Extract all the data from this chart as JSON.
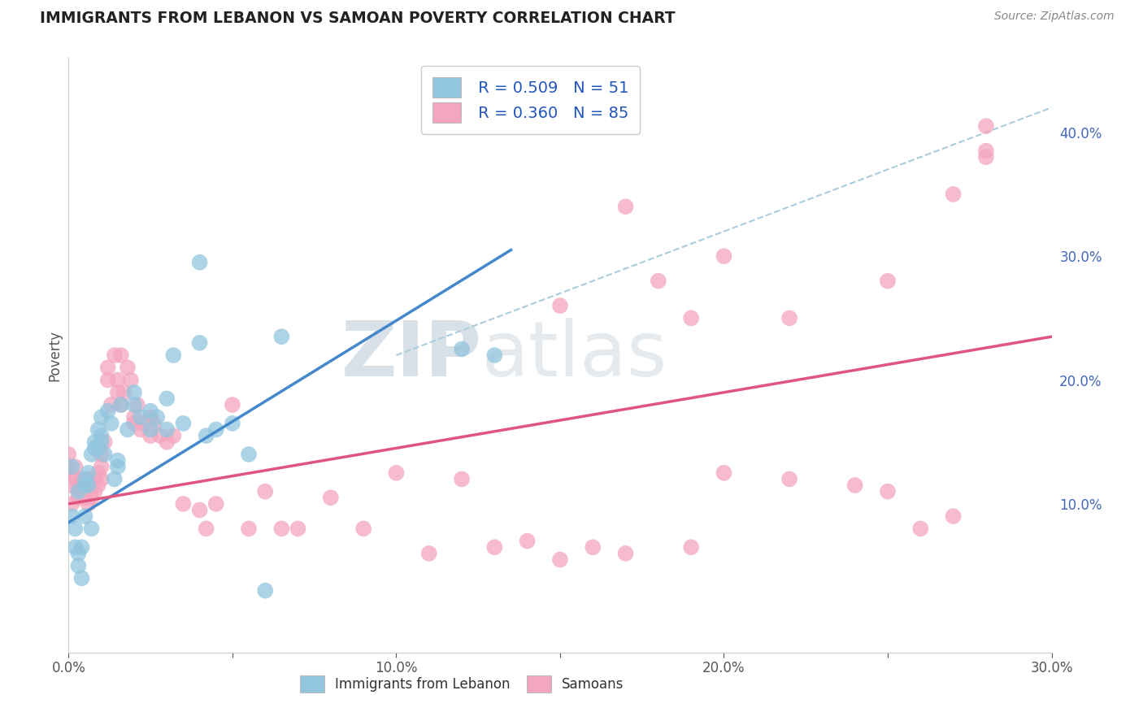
{
  "title": "IMMIGRANTS FROM LEBANON VS SAMOAN POVERTY CORRELATION CHART",
  "source": "Source: ZipAtlas.com",
  "ylabel": "Poverty",
  "x_min": 0.0,
  "x_max": 0.3,
  "y_min": -0.02,
  "y_max": 0.46,
  "x_ticks": [
    0.0,
    0.05,
    0.1,
    0.15,
    0.2,
    0.25,
    0.3
  ],
  "x_tick_labels": [
    "0.0%",
    "",
    "10.0%",
    "",
    "20.0%",
    "",
    "30.0%"
  ],
  "y_ticks_right": [
    0.1,
    0.2,
    0.3,
    0.4
  ],
  "y_tick_labels_right": [
    "10.0%",
    "20.0%",
    "30.0%",
    "40.0%"
  ],
  "legend_blue_r": "R = 0.509",
  "legend_blue_n": "N = 51",
  "legend_pink_r": "R = 0.360",
  "legend_pink_n": "N = 85",
  "legend_label_blue": "Immigrants from Lebanon",
  "legend_label_pink": "Samoans",
  "blue_color": "#92c5de",
  "pink_color": "#f4a6be",
  "blue_line_color": "#4488cc",
  "pink_line_color": "#e05580",
  "dashed_line_color": "#aaccdd",
  "watermark_zip": "ZIP",
  "watermark_atlas": "atlas",
  "blue_scatter_x": [
    0.001,
    0.001,
    0.002,
    0.002,
    0.003,
    0.003,
    0.003,
    0.004,
    0.004,
    0.005,
    0.005,
    0.005,
    0.006,
    0.006,
    0.007,
    0.007,
    0.008,
    0.008,
    0.009,
    0.009,
    0.01,
    0.01,
    0.01,
    0.011,
    0.012,
    0.013,
    0.014,
    0.015,
    0.015,
    0.016,
    0.018,
    0.02,
    0.02,
    0.022,
    0.025,
    0.025,
    0.027,
    0.03,
    0.03,
    0.032,
    0.035,
    0.04,
    0.04,
    0.042,
    0.045,
    0.05,
    0.055,
    0.06,
    0.065,
    0.12,
    0.13
  ],
  "blue_scatter_y": [
    0.13,
    0.09,
    0.08,
    0.065,
    0.05,
    0.06,
    0.11,
    0.065,
    0.04,
    0.12,
    0.09,
    0.115,
    0.115,
    0.125,
    0.08,
    0.14,
    0.145,
    0.15,
    0.16,
    0.145,
    0.17,
    0.15,
    0.155,
    0.14,
    0.175,
    0.165,
    0.12,
    0.13,
    0.135,
    0.18,
    0.16,
    0.18,
    0.19,
    0.17,
    0.16,
    0.175,
    0.17,
    0.185,
    0.16,
    0.22,
    0.165,
    0.23,
    0.295,
    0.155,
    0.16,
    0.165,
    0.14,
    0.03,
    0.235,
    0.225,
    0.22
  ],
  "pink_scatter_x": [
    0.0,
    0.0,
    0.0,
    0.001,
    0.001,
    0.002,
    0.002,
    0.003,
    0.003,
    0.003,
    0.004,
    0.004,
    0.005,
    0.005,
    0.006,
    0.006,
    0.007,
    0.007,
    0.008,
    0.008,
    0.009,
    0.009,
    0.01,
    0.01,
    0.01,
    0.011,
    0.012,
    0.012,
    0.013,
    0.014,
    0.015,
    0.015,
    0.016,
    0.016,
    0.017,
    0.018,
    0.019,
    0.02,
    0.02,
    0.021,
    0.022,
    0.023,
    0.025,
    0.025,
    0.026,
    0.028,
    0.03,
    0.032,
    0.035,
    0.04,
    0.042,
    0.045,
    0.05,
    0.055,
    0.06,
    0.065,
    0.07,
    0.08,
    0.09,
    0.1,
    0.11,
    0.12,
    0.13,
    0.14,
    0.15,
    0.16,
    0.17,
    0.18,
    0.19,
    0.2,
    0.22,
    0.24,
    0.25,
    0.26,
    0.27,
    0.28,
    0.15,
    0.17,
    0.19,
    0.2,
    0.22,
    0.25,
    0.27,
    0.28,
    0.28
  ],
  "pink_scatter_y": [
    0.13,
    0.115,
    0.14,
    0.1,
    0.125,
    0.12,
    0.13,
    0.11,
    0.115,
    0.105,
    0.12,
    0.115,
    0.105,
    0.115,
    0.1,
    0.12,
    0.105,
    0.115,
    0.11,
    0.12,
    0.115,
    0.125,
    0.13,
    0.12,
    0.14,
    0.15,
    0.2,
    0.21,
    0.18,
    0.22,
    0.19,
    0.2,
    0.18,
    0.22,
    0.19,
    0.21,
    0.2,
    0.165,
    0.17,
    0.18,
    0.16,
    0.165,
    0.155,
    0.17,
    0.165,
    0.155,
    0.15,
    0.155,
    0.1,
    0.095,
    0.08,
    0.1,
    0.18,
    0.08,
    0.11,
    0.08,
    0.08,
    0.105,
    0.08,
    0.125,
    0.06,
    0.12,
    0.065,
    0.07,
    0.055,
    0.065,
    0.06,
    0.28,
    0.065,
    0.125,
    0.12,
    0.115,
    0.11,
    0.08,
    0.09,
    0.38,
    0.26,
    0.34,
    0.25,
    0.3,
    0.25,
    0.28,
    0.35,
    0.385,
    0.405
  ],
  "blue_line_x": [
    0.0,
    0.135
  ],
  "blue_line_y": [
    0.085,
    0.305
  ],
  "pink_line_x": [
    0.0,
    0.3
  ],
  "pink_line_y": [
    0.1,
    0.235
  ],
  "dashed_line_x": [
    0.1,
    0.3
  ],
  "dashed_line_y": [
    0.22,
    0.42
  ],
  "background_color": "#ffffff",
  "grid_color": "#dddddd"
}
